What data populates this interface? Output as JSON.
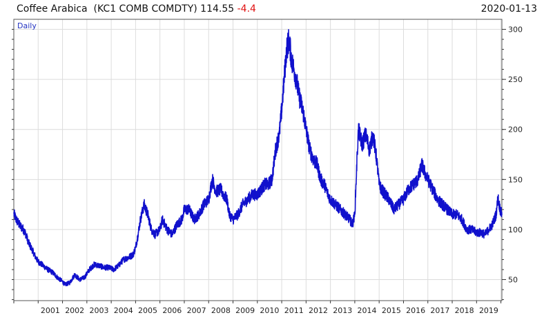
{
  "header": {
    "name": "Coffee Arabica",
    "ticker": "(KC1 COMB COMDTY)",
    "last": "114.55",
    "change": "-4.4",
    "date": "2020-01-13"
  },
  "colors": {
    "line": "#1010cc",
    "change_negative": "#e01010",
    "grid": "#dcdcdc"
  },
  "chart_data": {
    "type": "line",
    "period_label": "Daily",
    "xlabel": "",
    "ylabel": "",
    "x_tick_labels": [
      "2001",
      "2002",
      "2003",
      "2004",
      "2005",
      "2006",
      "2007",
      "2008",
      "2009",
      "2010",
      "2011",
      "2012",
      "2013",
      "2014",
      "2015",
      "2016",
      "2017",
      "2018",
      "2019"
    ],
    "y_tick_labels": [
      50,
      100,
      150,
      200,
      250,
      300
    ],
    "xlim": [
      2000.0,
      2020.04
    ],
    "ylim": [
      29,
      310
    ],
    "grid": true,
    "y_axis_side": "right",
    "series": [
      {
        "x": [
          2000.0,
          2000.1,
          2000.25,
          2000.4,
          2000.5,
          2000.6,
          2000.75,
          2000.9,
          2001.0,
          2001.2,
          2001.4,
          2001.6,
          2001.8,
          2002.0,
          2002.1,
          2002.3,
          2002.5,
          2002.7,
          2002.9,
          2003.1,
          2003.3,
          2003.5,
          2003.7,
          2003.9,
          2004.1,
          2004.3,
          2004.5,
          2004.7,
          2004.9,
          2005.0,
          2005.1,
          2005.2,
          2005.35,
          2005.5,
          2005.65,
          2005.8,
          2006.0,
          2006.1,
          2006.3,
          2006.5,
          2006.7,
          2006.9,
          2007.0,
          2007.2,
          2007.4,
          2007.6,
          2007.8,
          2008.0,
          2008.15,
          2008.3,
          2008.5,
          2008.6,
          2008.75,
          2008.85,
          2009.0,
          2009.2,
          2009.4,
          2009.6,
          2009.8,
          2010.0,
          2010.15,
          2010.3,
          2010.45,
          2010.6,
          2010.75,
          2010.9,
          2011.0,
          2011.1,
          2011.2,
          2011.3,
          2011.4,
          2011.5,
          2011.6,
          2011.7,
          2011.8,
          2011.9,
          2012.0,
          2012.15,
          2012.3,
          2012.45,
          2012.6,
          2012.75,
          2012.9,
          2013.0,
          2013.2,
          2013.4,
          2013.6,
          2013.8,
          2013.9,
          2014.0,
          2014.1,
          2014.15,
          2014.3,
          2014.45,
          2014.6,
          2014.75,
          2014.9,
          2015.0,
          2015.1,
          2015.25,
          2015.4,
          2015.6,
          2015.8,
          2016.0,
          2016.2,
          2016.4,
          2016.6,
          2016.75,
          2016.9,
          2017.0,
          2017.2,
          2017.4,
          2017.6,
          2017.8,
          2018.0,
          2018.2,
          2018.4,
          2018.6,
          2018.8,
          2019.0,
          2019.2,
          2019.35,
          2019.5,
          2019.65,
          2019.8,
          2019.88,
          2019.95,
          2020.04
        ],
        "values": [
          116,
          110,
          104,
          100,
          95,
          87,
          80,
          72,
          68,
          64,
          60,
          57,
          52,
          48,
          45,
          47,
          55,
          50,
          52,
          60,
          65,
          64,
          62,
          62,
          60,
          64,
          70,
          72,
          75,
          82,
          95,
          110,
          125,
          115,
          100,
          95,
          100,
          110,
          100,
          95,
          105,
          110,
          120,
          120,
          110,
          115,
          125,
          130,
          150,
          138,
          140,
          135,
          130,
          115,
          110,
          115,
          125,
          130,
          135,
          135,
          140,
          145,
          145,
          150,
          180,
          195,
          220,
          250,
          280,
          290,
          270,
          260,
          250,
          235,
          225,
          215,
          200,
          180,
          170,
          165,
          150,
          145,
          135,
          130,
          125,
          120,
          115,
          110,
          105,
          115,
          175,
          200,
          185,
          195,
          180,
          195,
          170,
          145,
          140,
          135,
          130,
          120,
          125,
          130,
          140,
          145,
          150,
          165,
          155,
          150,
          140,
          130,
          125,
          120,
          115,
          115,
          110,
          100,
          100,
          97,
          97,
          95,
          100,
          105,
          115,
          132,
          122,
          114.55
        ]
      }
    ]
  }
}
